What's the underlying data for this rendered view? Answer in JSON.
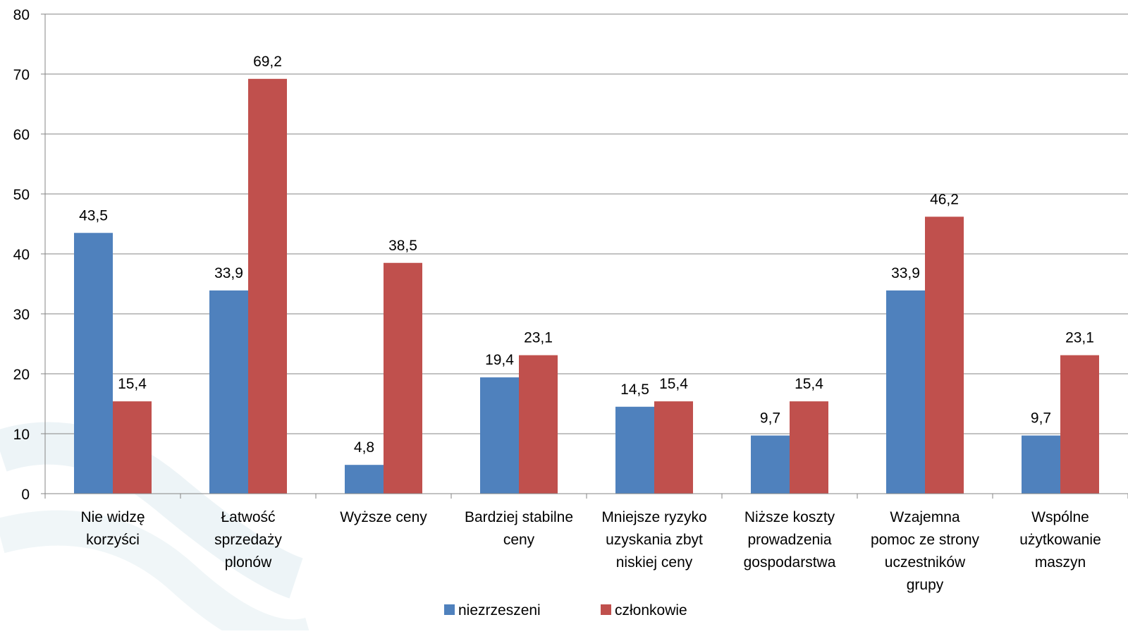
{
  "chart_data": {
    "type": "bar",
    "title": "",
    "xlabel": "",
    "ylabel": "",
    "ylim": [
      0,
      80
    ],
    "yticks": [
      0,
      10,
      20,
      30,
      40,
      50,
      60,
      70,
      80
    ],
    "grid": true,
    "legend_position": "bottom",
    "categories": [
      [
        "Nie widzę",
        "korzyści"
      ],
      [
        "Łatwość",
        "sprzedaży",
        "plonów"
      ],
      [
        "Wyższe ceny"
      ],
      [
        "Bardziej stabilne",
        "ceny"
      ],
      [
        "Mniejsze ryzyko",
        "uzyskania zbyt",
        "niskiej ceny"
      ],
      [
        "Niższe koszty",
        "prowadzenia",
        "gospodarstwa"
      ],
      [
        "Wzajemna",
        "pomoc ze strony",
        "uczestników",
        "grupy"
      ],
      [
        "Wspólne",
        "użytkowanie",
        "maszyn"
      ]
    ],
    "series": [
      {
        "name": "niezrzeszeni",
        "color": "#4F81BD",
        "values": [
          43.5,
          33.9,
          4.8,
          19.4,
          14.5,
          9.7,
          33.9,
          9.7
        ],
        "labels": [
          "43,5",
          "33,9",
          "4,8",
          "19,4",
          "14,5",
          "9,7",
          "33,9",
          "9,7"
        ]
      },
      {
        "name": "członkowie",
        "color": "#C0504D",
        "values": [
          15.4,
          69.2,
          38.5,
          23.1,
          15.4,
          15.4,
          46.2,
          23.1
        ],
        "labels": [
          "15,4",
          "69,2",
          "38,5",
          "23,1",
          "15,4",
          "15,4",
          "46,2",
          "23,1"
        ]
      }
    ]
  }
}
